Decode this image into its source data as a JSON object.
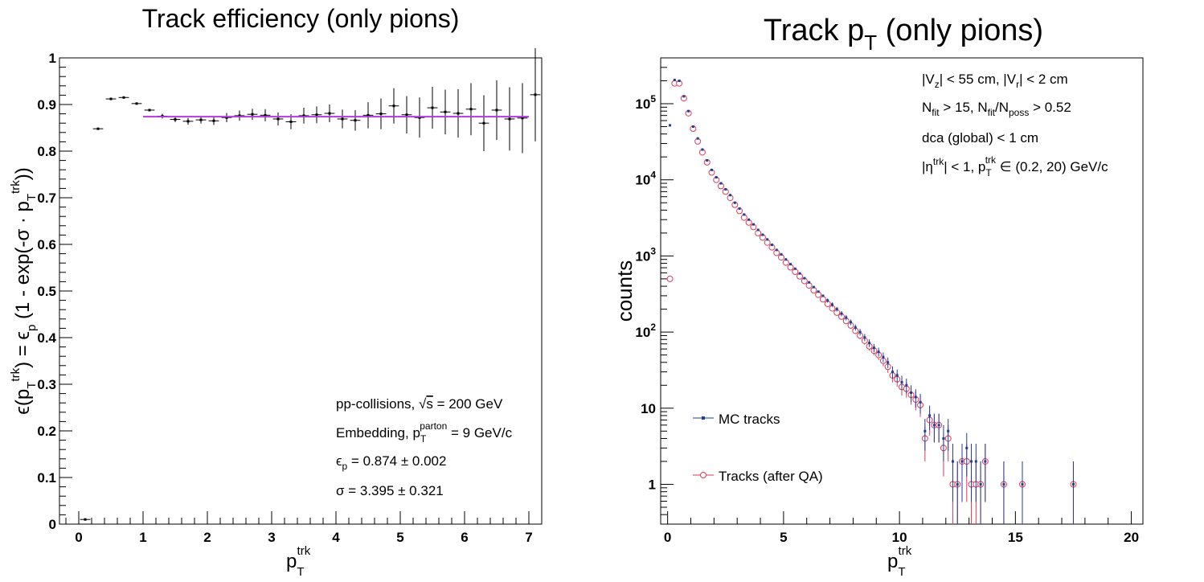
{
  "colors": {
    "fit_line": "#b23bdd",
    "mc_marker": "#1f3f8f",
    "qa_marker": "#e03a5a",
    "axis": "#000000",
    "background": "#ffffff"
  },
  "chart_data": [
    {
      "type": "scatter",
      "title": "Track efficiency (only pions)",
      "xlabel": "p_T^trk",
      "ylabel": "ϵ(p_T^trk) = ϵ_p (1 - exp(-σ · p_T^trk))",
      "xlim": [
        -0.3,
        7.2
      ],
      "ylim": [
        0,
        1
      ],
      "xticks": [
        "0",
        "1",
        "2",
        "3",
        "4",
        "5",
        "6",
        "7"
      ],
      "yticks": [
        "0",
        "0.1",
        "0.2",
        "0.3",
        "0.4",
        "0.5",
        "0.6",
        "0.7",
        "0.8",
        "0.9",
        "1"
      ],
      "grid": false,
      "series": [
        {
          "values_note": "",
          "points": [
            {
              "x": 0.1,
              "y": 0.01,
              "err": 0.002
            },
            {
              "x": 0.3,
              "y": 0.848,
              "err": 0.003
            },
            {
              "x": 0.5,
              "y": 0.912,
              "err": 0.003
            },
            {
              "x": 0.7,
              "y": 0.915,
              "err": 0.003
            },
            {
              "x": 0.9,
              "y": 0.902,
              "err": 0.003
            },
            {
              "x": 1.1,
              "y": 0.888,
              "err": 0.004
            },
            {
              "x": 1.3,
              "y": 0.875,
              "err": 0.005
            },
            {
              "x": 1.5,
              "y": 0.868,
              "err": 0.006
            },
            {
              "x": 1.7,
              "y": 0.864,
              "err": 0.007
            },
            {
              "x": 1.9,
              "y": 0.867,
              "err": 0.008
            },
            {
              "x": 2.1,
              "y": 0.865,
              "err": 0.009
            },
            {
              "x": 2.3,
              "y": 0.872,
              "err": 0.01
            },
            {
              "x": 2.5,
              "y": 0.876,
              "err": 0.011
            },
            {
              "x": 2.7,
              "y": 0.879,
              "err": 0.012
            },
            {
              "x": 2.9,
              "y": 0.877,
              "err": 0.013
            },
            {
              "x": 3.1,
              "y": 0.869,
              "err": 0.014
            },
            {
              "x": 3.3,
              "y": 0.863,
              "err": 0.016
            },
            {
              "x": 3.5,
              "y": 0.876,
              "err": 0.017
            },
            {
              "x": 3.7,
              "y": 0.878,
              "err": 0.018
            },
            {
              "x": 3.9,
              "y": 0.881,
              "err": 0.019
            },
            {
              "x": 4.1,
              "y": 0.869,
              "err": 0.02
            },
            {
              "x": 4.3,
              "y": 0.866,
              "err": 0.022
            },
            {
              "x": 4.5,
              "y": 0.877,
              "err": 0.028
            },
            {
              "x": 4.7,
              "y": 0.88,
              "err": 0.033
            },
            {
              "x": 4.9,
              "y": 0.897,
              "err": 0.038
            },
            {
              "x": 5.1,
              "y": 0.878,
              "err": 0.04
            },
            {
              "x": 5.3,
              "y": 0.872,
              "err": 0.043
            },
            {
              "x": 5.5,
              "y": 0.893,
              "err": 0.045
            },
            {
              "x": 5.7,
              "y": 0.884,
              "err": 0.048
            },
            {
              "x": 5.9,
              "y": 0.881,
              "err": 0.052
            },
            {
              "x": 6.1,
              "y": 0.89,
              "err": 0.056
            },
            {
              "x": 6.3,
              "y": 0.86,
              "err": 0.06
            },
            {
              "x": 6.5,
              "y": 0.888,
              "err": 0.064
            },
            {
              "x": 6.7,
              "y": 0.869,
              "err": 0.068
            },
            {
              "x": 6.9,
              "y": 0.871,
              "err": 0.075
            },
            {
              "x": 7.1,
              "y": 0.921,
              "err": 0.1
            }
          ]
        }
      ],
      "fit": {
        "xmin": 1.0,
        "xmax": 7.0,
        "y": 0.874
      },
      "annotations": [
        "pp-collisions, √s = 200 GeV",
        "Embedding, p_T^parton = 9 GeV/c",
        "ϵ_p = 0.874 ± 0.002",
        "σ = 3.395 ± 0.321"
      ]
    },
    {
      "type": "scatter",
      "title": "Track p_T (only pions)",
      "xlabel": "p_T^trk",
      "ylabel": "counts",
      "xscale": "linear",
      "yscale": "log",
      "xlim": [
        -0.3,
        20.5
      ],
      "ylim": [
        0.3,
        400000
      ],
      "xticks": [
        "0",
        "5",
        "10",
        "15",
        "20"
      ],
      "yticks": [
        "1",
        "10",
        "10^2",
        "10^3",
        "10^4",
        "10^5"
      ],
      "grid": false,
      "legend_position": "bottom-left",
      "legend": [
        "MC tracks",
        "Tracks (after QA)"
      ],
      "cuts": [
        "|V_z| < 55 cm, |V_r| < 2 cm",
        "N_fit > 15, N_fit/N_poss > 0.52",
        "dca (global) < 1 cm",
        "|η^trk| < 1, p_T^trk ∈ (0.2, 20) GeV/c"
      ],
      "mc_tracks": [
        [
          0.1,
          52000
        ],
        [
          0.3,
          205000
        ],
        [
          0.5,
          200000
        ],
        [
          0.7,
          125000
        ],
        [
          0.9,
          80000
        ],
        [
          1.1,
          50000
        ],
        [
          1.3,
          35000
        ],
        [
          1.5,
          25000
        ],
        [
          1.7,
          18000
        ],
        [
          1.9,
          13500
        ],
        [
          2.1,
          10800
        ],
        [
          2.3,
          9000
        ],
        [
          2.5,
          7500
        ],
        [
          2.7,
          6300
        ],
        [
          2.9,
          5000
        ],
        [
          3.1,
          4200
        ],
        [
          3.3,
          3500
        ],
        [
          3.5,
          3000
        ],
        [
          3.7,
          2600
        ],
        [
          3.9,
          2200
        ],
        [
          4.1,
          1900
        ],
        [
          4.3,
          1650
        ],
        [
          4.5,
          1400
        ],
        [
          4.7,
          1200
        ],
        [
          4.9,
          1050
        ],
        [
          5.1,
          900
        ],
        [
          5.3,
          780
        ],
        [
          5.5,
          680
        ],
        [
          5.7,
          590
        ],
        [
          5.9,
          510
        ],
        [
          6.1,
          450
        ],
        [
          6.3,
          390
        ],
        [
          6.5,
          340
        ],
        [
          6.7,
          300
        ],
        [
          6.9,
          260
        ],
        [
          7.1,
          230
        ],
        [
          7.3,
          200
        ],
        [
          7.5,
          175
        ],
        [
          7.7,
          155
        ],
        [
          7.9,
          135
        ],
        [
          8.1,
          115
        ],
        [
          8.3,
          100
        ],
        [
          8.5,
          85
        ],
        [
          8.7,
          72
        ],
        [
          8.9,
          62
        ],
        [
          9.1,
          55
        ],
        [
          9.3,
          47
        ],
        [
          9.5,
          40
        ],
        [
          9.7,
          30
        ],
        [
          9.9,
          27
        ],
        [
          10.1,
          22
        ],
        [
          10.3,
          20
        ],
        [
          10.5,
          16
        ],
        [
          10.7,
          14
        ],
        [
          10.9,
          12
        ],
        [
          11.1,
          5
        ],
        [
          11.3,
          8
        ],
        [
          11.5,
          6
        ],
        [
          11.7,
          6
        ],
        [
          11.9,
          4
        ],
        [
          12.1,
          5
        ],
        [
          12.3,
          2
        ],
        [
          12.5,
          1
        ],
        [
          12.7,
          2
        ],
        [
          12.9,
          3
        ],
        [
          13.1,
          2
        ],
        [
          13.3,
          2
        ],
        [
          13.5,
          1
        ],
        [
          13.7,
          2
        ],
        [
          14.5,
          1
        ],
        [
          15.3,
          1
        ],
        [
          17.5,
          1
        ]
      ],
      "qa_tracks": [
        [
          0.1,
          500
        ],
        [
          0.3,
          185000
        ],
        [
          0.5,
          185000
        ],
        [
          0.7,
          118000
        ],
        [
          0.9,
          75000
        ],
        [
          1.1,
          47000
        ],
        [
          1.3,
          32000
        ],
        [
          1.5,
          23000
        ],
        [
          1.7,
          17000
        ],
        [
          1.9,
          12500
        ],
        [
          2.1,
          10000
        ],
        [
          2.3,
          8300
        ],
        [
          2.5,
          7000
        ],
        [
          2.7,
          5800
        ],
        [
          2.9,
          4700
        ],
        [
          3.1,
          3900
        ],
        [
          3.3,
          3200
        ],
        [
          3.5,
          2750
        ],
        [
          3.7,
          2400
        ],
        [
          3.9,
          2000
        ],
        [
          4.1,
          1750
        ],
        [
          4.3,
          1500
        ],
        [
          4.5,
          1300
        ],
        [
          4.7,
          1100
        ],
        [
          4.9,
          960
        ],
        [
          5.1,
          820
        ],
        [
          5.3,
          710
        ],
        [
          5.5,
          620
        ],
        [
          5.7,
          540
        ],
        [
          5.9,
          470
        ],
        [
          6.1,
          410
        ],
        [
          6.3,
          355
        ],
        [
          6.5,
          310
        ],
        [
          6.7,
          270
        ],
        [
          6.9,
          235
        ],
        [
          7.1,
          205
        ],
        [
          7.3,
          180
        ],
        [
          7.5,
          160
        ],
        [
          7.7,
          140
        ],
        [
          7.9,
          122
        ],
        [
          8.1,
          104
        ],
        [
          8.3,
          90
        ],
        [
          8.5,
          77
        ],
        [
          8.7,
          65
        ],
        [
          8.9,
          57
        ],
        [
          9.1,
          50
        ],
        [
          9.3,
          42
        ],
        [
          9.5,
          35
        ],
        [
          9.7,
          27
        ],
        [
          9.9,
          24
        ],
        [
          10.1,
          19
        ],
        [
          10.3,
          18
        ],
        [
          10.5,
          15
        ],
        [
          10.7,
          13
        ],
        [
          10.9,
          11
        ],
        [
          11.1,
          4
        ],
        [
          11.3,
          7
        ],
        [
          11.5,
          6
        ],
        [
          11.7,
          6
        ],
        [
          11.9,
          3
        ],
        [
          12.1,
          4
        ],
        [
          12.3,
          1
        ],
        [
          12.5,
          1
        ],
        [
          12.7,
          2
        ],
        [
          12.9,
          2
        ],
        [
          13.1,
          1
        ],
        [
          13.3,
          1
        ],
        [
          13.5,
          1
        ],
        [
          13.7,
          2
        ],
        [
          14.5,
          1
        ],
        [
          15.3,
          1
        ],
        [
          17.5,
          1
        ]
      ]
    }
  ]
}
